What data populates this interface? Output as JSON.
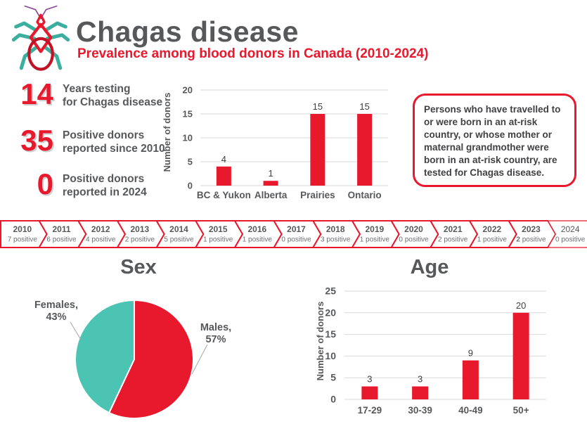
{
  "header": {
    "title": "Chagas disease",
    "subtitle": "Prevalence among blood donors in Canada (2010-2024)",
    "logo": "kissing-bug-icon"
  },
  "stats": [
    {
      "value": "14",
      "label": "Years testing\nfor Chagas disease"
    },
    {
      "value": "35",
      "label": "Positive donors\nreported since 2010"
    },
    {
      "value": "0",
      "label": "Positive donors\nreported in 2024"
    }
  ],
  "info_box": {
    "text": "Persons who have travelled to or were born in an at-risk country, or whose mother or maternal grandmother were born in an at-risk country, are tested for Chagas disease."
  },
  "timeline": [
    {
      "year": "2010",
      "count": "7 positive"
    },
    {
      "year": "2011",
      "count": "6 positive"
    },
    {
      "year": "2012",
      "count": "4 positive"
    },
    {
      "year": "2013",
      "count": "2 positive"
    },
    {
      "year": "2014",
      "count": "5 positive"
    },
    {
      "year": "2015",
      "count": "1 positive"
    },
    {
      "year": "2016",
      "count": "1 positive"
    },
    {
      "year": "2017",
      "count": "0 positive"
    },
    {
      "year": "2018",
      "count": "3 positive"
    },
    {
      "year": "2019",
      "count": "1 positive"
    },
    {
      "year": "2020",
      "count": "0 positive"
    },
    {
      "year": "2021",
      "count": "2 positive"
    },
    {
      "year": "2022",
      "count": "1 positive"
    },
    {
      "year": "2023",
      "count": "2 positive",
      "count_bold": true
    },
    {
      "year": "2024",
      "count": "0 positive",
      "year_light": true,
      "thin_border": true
    }
  ],
  "chart_data": [
    {
      "id": "regions",
      "type": "bar",
      "title": "",
      "ylabel": "Number of donors",
      "categories": [
        "BC & Yukon",
        "Alberta",
        "Prairies",
        "Ontario"
      ],
      "values": [
        4,
        1,
        15,
        15
      ],
      "ylim": [
        0,
        20
      ],
      "ytick_step": 5,
      "grid": true,
      "legend": "none"
    },
    {
      "id": "sex",
      "type": "pie",
      "title": "Sex",
      "start_angle": "top",
      "direction": "clockwise",
      "slices": [
        {
          "label": "Males",
          "pct": 57,
          "color": "#e8192d",
          "label_text": "Males,\n57%"
        },
        {
          "label": "Females",
          "pct": 43,
          "color": "#4cc4b4",
          "label_text": "Females,\n43%"
        }
      ]
    },
    {
      "id": "age",
      "type": "bar",
      "title": "Age",
      "ylabel": "Number of donors",
      "categories": [
        "17-29",
        "30-39",
        "40-49",
        "50+"
      ],
      "values": [
        3,
        3,
        9,
        20
      ],
      "ylim": [
        0,
        25
      ],
      "ytick_step": 5,
      "grid": true,
      "legend": "none"
    }
  ],
  "colors": {
    "red": "#e8192d",
    "teal": "#4cc4b4",
    "dark_gray": "#57585a",
    "mid_gray": "#6d6e71",
    "gridline": "#d9d9d9",
    "value_label": "#3f4041",
    "purple": "#8a4a97",
    "leader_line": "#a6a7aa"
  }
}
